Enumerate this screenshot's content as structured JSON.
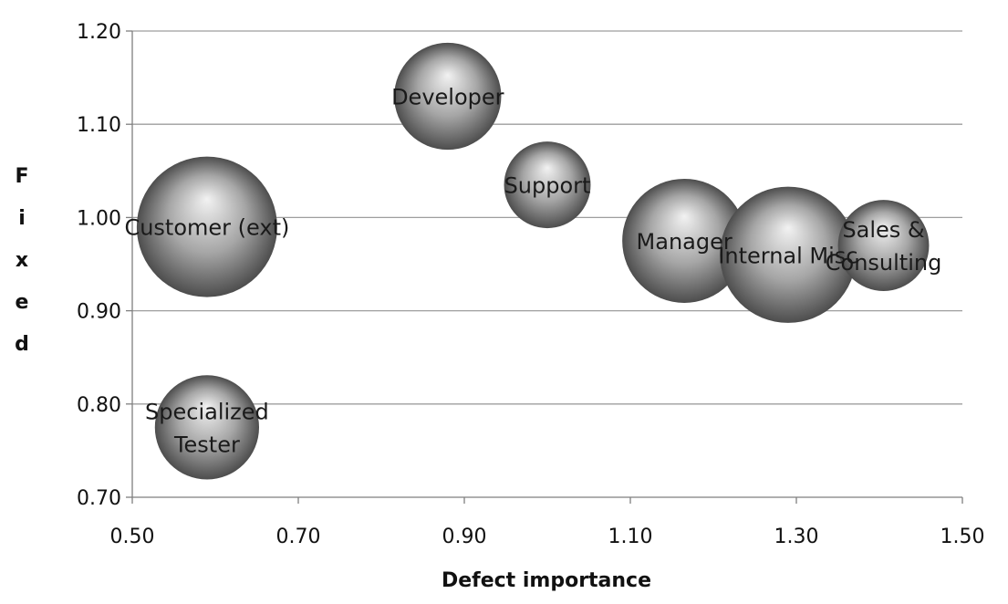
{
  "chart_data": {
    "type": "bubble",
    "xlabel": "Defect importance",
    "ylabel": "Fixed",
    "xlim": [
      0.5,
      1.5
    ],
    "ylim": [
      0.7,
      1.2
    ],
    "xticks": [
      "0.50",
      "0.70",
      "0.90",
      "1.10",
      "1.30",
      "1.50"
    ],
    "yticks": [
      "0.70",
      "0.80",
      "0.90",
      "1.00",
      "1.10",
      "1.20"
    ],
    "grid": "horizontal",
    "legend": "none",
    "colors": {
      "bubble_light": "#f2f2f2",
      "bubble_mid": "#a6a6a6",
      "bubble_dark": "#4d4d4d",
      "gridline": "#9e9e9e",
      "axis": "#7f7f7f"
    },
    "series": [
      {
        "label": "Customer (ext)",
        "x": 0.59,
        "y": 0.99,
        "size": 1.0
      },
      {
        "label": "Developer",
        "x": 0.88,
        "y": 1.13,
        "size": 0.58
      },
      {
        "label": "Support",
        "x": 1.0,
        "y": 1.035,
        "size": 0.38
      },
      {
        "label": "Manager",
        "x": 1.165,
        "y": 0.975,
        "size": 0.78
      },
      {
        "label": "Internal Misc",
        "x": 1.29,
        "y": 0.96,
        "size": 0.94
      },
      {
        "label": "Sales & Consulting",
        "x": 1.405,
        "y": 0.97,
        "size": 0.42
      },
      {
        "label": "Specialized Tester",
        "x": 0.59,
        "y": 0.775,
        "size": 0.55
      }
    ]
  }
}
